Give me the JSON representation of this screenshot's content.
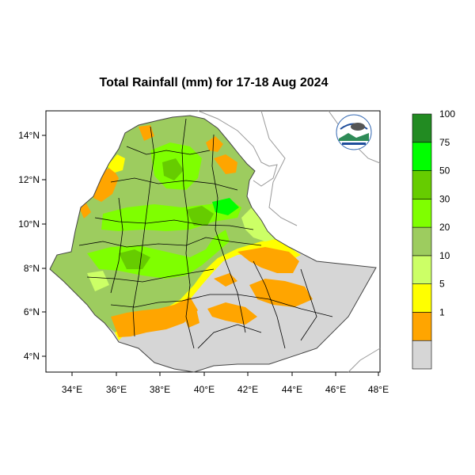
{
  "title": "Total Rainfall (mm) for 17-18 Aug 2024",
  "lon_ticks": [
    "34°E",
    "36°E",
    "38°E",
    "40°E",
    "42°E",
    "44°E",
    "46°E",
    "48°E"
  ],
  "lat_ticks": [
    "14°N",
    "12°N",
    "10°N",
    "8°N",
    "6°N",
    "4°N"
  ],
  "legend": {
    "bins": [
      {
        "label": "",
        "color": "#d6d6d6"
      },
      {
        "label": "1",
        "color": "#ffa500"
      },
      {
        "label": "5",
        "color": "#ffff00"
      },
      {
        "label": "10",
        "color": "#ccff66"
      },
      {
        "label": "20",
        "color": "#9dcc5f"
      },
      {
        "label": "30",
        "color": "#7fff00"
      },
      {
        "label": "50",
        "color": "#66cc00"
      },
      {
        "label": "75",
        "color": "#00ff00"
      },
      {
        "label": "100",
        "color": "#228b22"
      }
    ]
  },
  "colors": {
    "no_rain": "#d6d6d6",
    "light": "#ffa500",
    "low": "#ffff00",
    "mid": "#ccff66",
    "moderate": "#9dcc5f",
    "heavy": "#7fff00",
    "very_heavy": "#66cc00"
  }
}
